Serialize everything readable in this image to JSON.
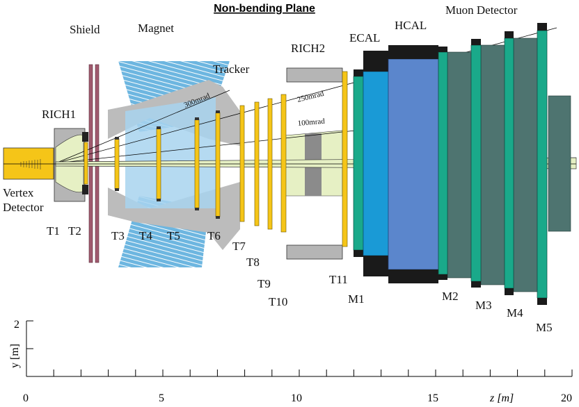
{
  "title": "Non-bending Plane",
  "components": {
    "shield": "Shield",
    "magnet": "Magnet",
    "tracker": "Tracker",
    "rich1": "RICH1",
    "rich2": "RICH2",
    "ecal": "ECAL",
    "hcal": "HCAL",
    "muon": "Muon Detector",
    "vertex_line1": "Vertex",
    "vertex_line2": "Detector"
  },
  "angles": {
    "a300": "300mrad",
    "a250": "250mrad",
    "a100": "100mrad"
  },
  "stations": {
    "t1": "T1",
    "t2": "T2",
    "t3": "T3",
    "t4": "T4",
    "t5": "T5",
    "t6": "T6",
    "t7": "T7",
    "t8": "T8",
    "t9": "T9",
    "t10": "T10",
    "t11": "T11",
    "m1": "M1",
    "m2": "M2",
    "m3": "M3",
    "m4": "M4",
    "m5": "M5"
  },
  "axes": {
    "ylabel": "y [m]",
    "xlabel": "z [m]",
    "y_tick_2": "2",
    "x_ticks": [
      "0",
      "5",
      "10",
      "15",
      "20"
    ]
  },
  "colors": {
    "shield": "#a05a6e",
    "magnet_hatch": "#5aa7d6",
    "magnet_body": "#a8d4ee",
    "tracker_shape": "#b9b9b9",
    "station": "#f5c518",
    "rich": "#e6f0c4",
    "ecal": "#1a9ad6",
    "hcal": "#5b86cc",
    "muon_filter": "#4e7470",
    "muon_station": "#1aa98a",
    "dark": "#1a1a1a",
    "vertex": "#f5c518"
  }
}
